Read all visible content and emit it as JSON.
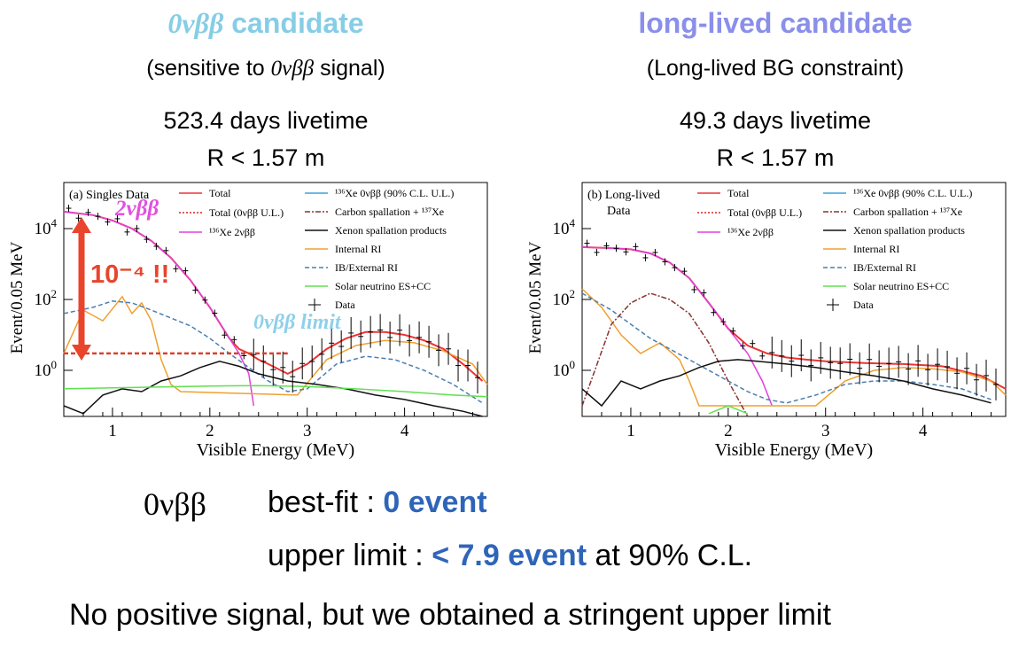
{
  "left_header": {
    "title_prefix": "0",
    "title_greek": "νββ",
    "title_suffix": " candidate",
    "title_color": "#86cde6",
    "subtitle_open": "(sensitive to ",
    "subtitle_greek_prefix": "0",
    "subtitle_greek": "νββ",
    "subtitle_close": " signal)",
    "livetime": "523.4 days livetime",
    "radius": "R < 1.57 m"
  },
  "right_header": {
    "title": "long-lived candidate",
    "title_color": "#8a8fea",
    "subtitle": "(Long-lived BG constraint)",
    "livetime": "49.3 days livetime",
    "radius": "R < 1.57 m"
  },
  "annotations": {
    "two_nu_label": "2νββ",
    "two_nu_color": "#e050e0",
    "ratio_label": "10⁻⁴ !!",
    "ratio_color": "#e8452c",
    "limit_label": "0νββ limit",
    "limit_color": "#8fd0ea"
  },
  "summary": {
    "label": "0νββ",
    "bestfit_prefix": "best-fit : ",
    "bestfit_value": "0 event",
    "upper_prefix": "upper limit : ",
    "upper_value": "< 7.9 event",
    "upper_suffix": " at 90% C.L.",
    "conclusion": "No positive signal, but we obtained a stringent upper limit",
    "accent": "#2e65b8"
  },
  "chart_data": [
    {
      "type": "line",
      "panel_label": "(a) Singles Data",
      "xlabel": "Visible Energy (MeV)",
      "ylabel": "Event/0.05 MeV",
      "xlim": [
        0.5,
        4.85
      ],
      "ylim": [
        0.05,
        200000
      ],
      "yscale": "log",
      "xticks": [
        "1",
        "2",
        "3",
        "4"
      ],
      "yticks": [
        "10^0",
        "10^2",
        "10^4"
      ],
      "legend": {
        "col1": [
          "Total",
          "Total (0νββ U.L.)",
          "¹³⁶Xe 2νββ"
        ],
        "col2": [
          "¹³⁶Xe 0νββ (90% C.L. U.L.)",
          "Carbon spallation + ¹³⁷Xe",
          "Xenon spallation products",
          "Internal RI",
          "IB/External RI",
          "Solar neutrino ES+CC",
          "Data"
        ]
      },
      "series": [
        {
          "name": "Total",
          "color": "#e33",
          "x": [
            0.5,
            0.8,
            1.0,
            1.2,
            1.4,
            1.6,
            1.8,
            2.0,
            2.2,
            2.3,
            2.4,
            2.5,
            2.6,
            2.8,
            3.0,
            3.2,
            3.4,
            3.6,
            3.8,
            4.0,
            4.2,
            4.4,
            4.6,
            4.8
          ],
          "y": [
            30000,
            24000,
            17000,
            10000,
            4500,
            1500,
            350,
            60,
            8,
            4,
            3,
            2,
            1.5,
            0.8,
            1.5,
            4,
            8,
            12,
            12,
            10,
            7,
            4,
            1.5,
            0.5
          ]
        },
        {
          "name": "¹³⁶Xe 2νββ",
          "color": "#e040e0",
          "x": [
            0.5,
            0.8,
            1.0,
            1.2,
            1.4,
            1.6,
            1.8,
            2.0,
            2.2,
            2.3,
            2.4,
            2.45
          ],
          "y": [
            30000,
            24000,
            17000,
            10000,
            4500,
            1500,
            350,
            60,
            8,
            3,
            0.8,
            0.1
          ]
        },
        {
          "name": "Internal RI",
          "color": "#f0a030",
          "x": [
            0.5,
            0.7,
            0.9,
            1.1,
            1.2,
            1.3,
            1.4,
            1.5,
            1.6,
            1.7,
            2.9,
            3.2,
            3.5,
            3.8,
            4.1,
            4.4,
            4.7,
            4.85
          ],
          "y": [
            3,
            50,
            25,
            120,
            40,
            80,
            25,
            2,
            0.4,
            0.25,
            0.2,
            2,
            5,
            7,
            6,
            3.5,
            1.5,
            0.4
          ]
        },
        {
          "name": "IB/External RI",
          "color": "#4a7fb0",
          "x": [
            0.5,
            0.8,
            1.0,
            1.2,
            1.4,
            1.6,
            1.8,
            2.0,
            2.2,
            2.4,
            2.6,
            2.8,
            3.0,
            3.3,
            3.6,
            3.9,
            4.2,
            4.5,
            4.8
          ],
          "y": [
            40,
            60,
            90,
            80,
            50,
            30,
            18,
            8,
            3,
            1.2,
            0.5,
            0.25,
            0.3,
            1.5,
            2.5,
            2,
            1,
            0.4,
            0.12
          ]
        },
        {
          "name": "Xenon spallation products",
          "color": "#111",
          "x": [
            0.5,
            0.7,
            0.9,
            1.1,
            1.3,
            1.5,
            1.7,
            1.9,
            2.1,
            2.3,
            2.5,
            2.8,
            3.1,
            3.4,
            3.7,
            4.0,
            4.3,
            4.6,
            4.8
          ],
          "y": [
            0.1,
            0.06,
            0.2,
            0.3,
            0.25,
            0.5,
            0.7,
            1.2,
            1.8,
            1.3,
            0.8,
            0.5,
            0.4,
            0.3,
            0.2,
            0.15,
            0.1,
            0.07,
            0.05
          ]
        },
        {
          "name": "Solar neutrino ES+CC",
          "color": "#60e050",
          "x": [
            0.5,
            1.0,
            1.5,
            2.0,
            2.5,
            3.0,
            3.5,
            4.0,
            4.5,
            4.85
          ],
          "y": [
            0.3,
            0.32,
            0.34,
            0.36,
            0.37,
            0.35,
            0.3,
            0.25,
            0.2,
            0.18
          ]
        }
      ],
      "upper_limit_level": 3
    },
    {
      "type": "line",
      "panel_label": "(b) Long-lived Data",
      "xlabel": "Visible Energy (MeV)",
      "ylabel": "Event/0.05 MeV",
      "xlim": [
        0.5,
        4.85
      ],
      "ylim": [
        0.05,
        200000
      ],
      "yscale": "log",
      "xticks": [
        "1",
        "2",
        "3",
        "4"
      ],
      "yticks": [
        "10^0",
        "10^2",
        "10^4"
      ],
      "legend": {
        "col1": [
          "Total",
          "Total (0νββ U.L.)",
          "¹³⁶Xe 2νββ"
        ],
        "col2": [
          "¹³⁶Xe 0νββ (90% C.L. U.L.)",
          "Carbon spallation + ¹³⁷Xe",
          "Xenon spallation products",
          "Internal RI",
          "IB/External RI",
          "Solar neutrino ES+CC",
          "Data"
        ]
      },
      "series": [
        {
          "name": "Total",
          "color": "#e33",
          "x": [
            0.5,
            0.8,
            1.0,
            1.2,
            1.4,
            1.6,
            1.8,
            2.0,
            2.2,
            2.4,
            2.6,
            2.8,
            3.0,
            3.4,
            3.8,
            4.2,
            4.6,
            4.85
          ],
          "y": [
            3000,
            2800,
            2600,
            2000,
            1100,
            400,
            80,
            15,
            5,
            3,
            2.3,
            2,
            1.8,
            1.6,
            1.5,
            1.3,
            0.7,
            0.3
          ]
        },
        {
          "name": "¹³⁶Xe 2νββ",
          "color": "#e040e0",
          "x": [
            0.5,
            0.8,
            1.0,
            1.2,
            1.4,
            1.6,
            1.8,
            2.0,
            2.2,
            2.35,
            2.45
          ],
          "y": [
            3000,
            2800,
            2600,
            2000,
            1100,
            400,
            80,
            15,
            3,
            0.5,
            0.1
          ]
        },
        {
          "name": "Internal RI",
          "color": "#f0a030",
          "x": [
            0.5,
            0.7,
            0.9,
            1.1,
            1.3,
            1.5,
            1.6,
            1.7,
            2.9,
            3.2,
            3.5,
            3.8,
            4.1,
            4.4,
            4.7,
            4.85
          ],
          "y": [
            200,
            60,
            10,
            3,
            6,
            2,
            0.5,
            0.1,
            0.1,
            0.5,
            1.0,
            1.2,
            1.1,
            0.9,
            0.5,
            0.2
          ]
        },
        {
          "name": "IB/External RI",
          "color": "#4a7fb0",
          "x": [
            0.5,
            0.8,
            1.0,
            1.2,
            1.4,
            1.6,
            1.8,
            2.0,
            2.2,
            2.4,
            2.6,
            2.9,
            3.2,
            3.5,
            3.8,
            4.1,
            4.4,
            4.7
          ],
          "y": [
            150,
            50,
            20,
            8,
            4,
            2,
            1,
            0.5,
            0.25,
            0.15,
            0.12,
            0.2,
            0.4,
            0.5,
            0.5,
            0.4,
            0.3,
            0.15
          ]
        },
        {
          "name": "Carbon spallation + ¹³⁷Xe",
          "color": "#8b3030",
          "x": [
            0.5,
            0.8,
            1.0,
            1.2,
            1.4,
            1.6,
            1.8,
            2.0,
            2.2
          ],
          "y": [
            0.1,
            20,
            80,
            150,
            100,
            40,
            6,
            0.5,
            0.05
          ]
        },
        {
          "name": "Xenon spallation products",
          "color": "#111",
          "x": [
            0.5,
            0.7,
            0.9,
            1.1,
            1.3,
            1.5,
            1.7,
            1.9,
            2.1,
            2.3,
            2.6,
            2.9,
            3.2,
            3.5,
            3.8,
            4.1,
            4.4,
            4.7
          ],
          "y": [
            0.3,
            0.1,
            0.5,
            0.3,
            0.5,
            0.7,
            1.2,
            1.8,
            2.0,
            1.8,
            1.5,
            1.2,
            0.9,
            0.7,
            0.5,
            0.3,
            0.2,
            0.12
          ]
        },
        {
          "name": "Solar neutrino ES+CC",
          "color": "#60e050",
          "x": [
            1.8,
            2.0,
            2.2
          ],
          "y": [
            0.06,
            0.1,
            0.06
          ]
        }
      ]
    }
  ]
}
